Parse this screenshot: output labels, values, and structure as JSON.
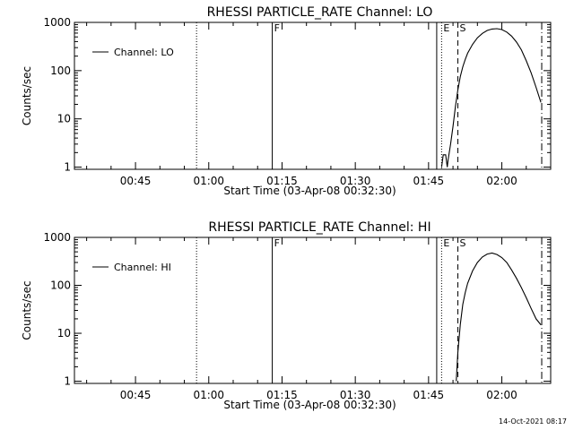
{
  "footer": {
    "timestamp": "14-Oct-2021 08:17"
  },
  "chart_data": [
    {
      "type": "line",
      "title": "RHESSI PARTICLE_RATE Channel: LO",
      "xlabel": "Start Time (03-Apr-08 00:32:30)",
      "ylabel": "Counts/sec",
      "yscale": "log",
      "xlim": [
        "00:32:30",
        "02:10:00"
      ],
      "ylim": [
        0.9,
        1000
      ],
      "xticks": [
        "00:45",
        "01:00",
        "01:15",
        "01:30",
        "01:45",
        "02:00"
      ],
      "yticks": [
        "1",
        "10",
        "100",
        "1000"
      ],
      "legend": {
        "position": "top-left",
        "entries": [
          "Channel: LO"
        ]
      },
      "markers": [
        {
          "label": "",
          "time": "00:57:30",
          "style": "dotted"
        },
        {
          "label": "F",
          "time": "01:13:00",
          "style": "solid"
        },
        {
          "label": "",
          "time": "01:46:40",
          "style": "solid"
        },
        {
          "label": "E",
          "time": "01:47:40",
          "style": "dotted"
        },
        {
          "label": "S",
          "time": "01:51:00",
          "style": "dashed"
        },
        {
          "label": "",
          "time": "02:08:10",
          "style": "dashdot"
        }
      ],
      "series": [
        {
          "name": "Channel: LO",
          "x": [
            "01:47:40",
            "01:48:00",
            "01:48:30",
            "01:48:50",
            "01:49:00",
            "01:49:30",
            "01:50:00",
            "01:50:30",
            "01:51:00",
            "01:51:30",
            "01:52:00",
            "01:52:30",
            "01:53:00",
            "01:54:00",
            "01:55:00",
            "01:56:00",
            "01:57:00",
            "01:58:00",
            "01:59:00",
            "02:00:00",
            "02:01:00",
            "02:02:00",
            "02:03:00",
            "02:04:00",
            "02:05:00",
            "02:06:00",
            "02:07:00",
            "02:08:00"
          ],
          "values": [
            1,
            1.8,
            1.8,
            1,
            1.4,
            3,
            7,
            18,
            40,
            75,
            120,
            170,
            230,
            350,
            480,
            590,
            680,
            730,
            740,
            710,
            630,
            520,
            390,
            270,
            160,
            90,
            45,
            22
          ]
        }
      ]
    },
    {
      "type": "line",
      "title": "RHESSI PARTICLE_RATE Channel: HI",
      "xlabel": "Start Time (03-Apr-08 00:32:30)",
      "ylabel": "Counts/sec",
      "yscale": "log",
      "xlim": [
        "00:32:30",
        "02:10:00"
      ],
      "ylim": [
        0.9,
        1000
      ],
      "xticks": [
        "00:45",
        "01:00",
        "01:15",
        "01:30",
        "01:45",
        "02:00"
      ],
      "yticks": [
        "1",
        "10",
        "100",
        "1000"
      ],
      "legend": {
        "position": "top-left",
        "entries": [
          "Channel: HI"
        ]
      },
      "markers": [
        {
          "label": "",
          "time": "00:57:30",
          "style": "dotted"
        },
        {
          "label": "F",
          "time": "01:13:00",
          "style": "solid"
        },
        {
          "label": "",
          "time": "01:46:40",
          "style": "solid"
        },
        {
          "label": "E",
          "time": "01:47:40",
          "style": "dotted"
        },
        {
          "label": "S",
          "time": "01:51:00",
          "style": "dashed"
        },
        {
          "label": "",
          "time": "02:08:10",
          "style": "dashdot"
        }
      ],
      "series": [
        {
          "name": "Channel: HI",
          "x": [
            "01:50:40",
            "01:51:00",
            "01:51:30",
            "01:52:00",
            "01:52:30",
            "01:53:00",
            "01:54:00",
            "01:55:00",
            "01:56:00",
            "01:57:00",
            "01:58:00",
            "01:59:00",
            "02:00:00",
            "02:01:00",
            "02:02:00",
            "02:03:00",
            "02:04:00",
            "02:05:00",
            "02:06:00",
            "02:07:00",
            "02:08:00"
          ],
          "values": [
            1,
            4,
            15,
            40,
            70,
            110,
            200,
            300,
            390,
            450,
            470,
            440,
            380,
            300,
            210,
            140,
            90,
            55,
            33,
            20,
            15
          ]
        }
      ]
    }
  ]
}
